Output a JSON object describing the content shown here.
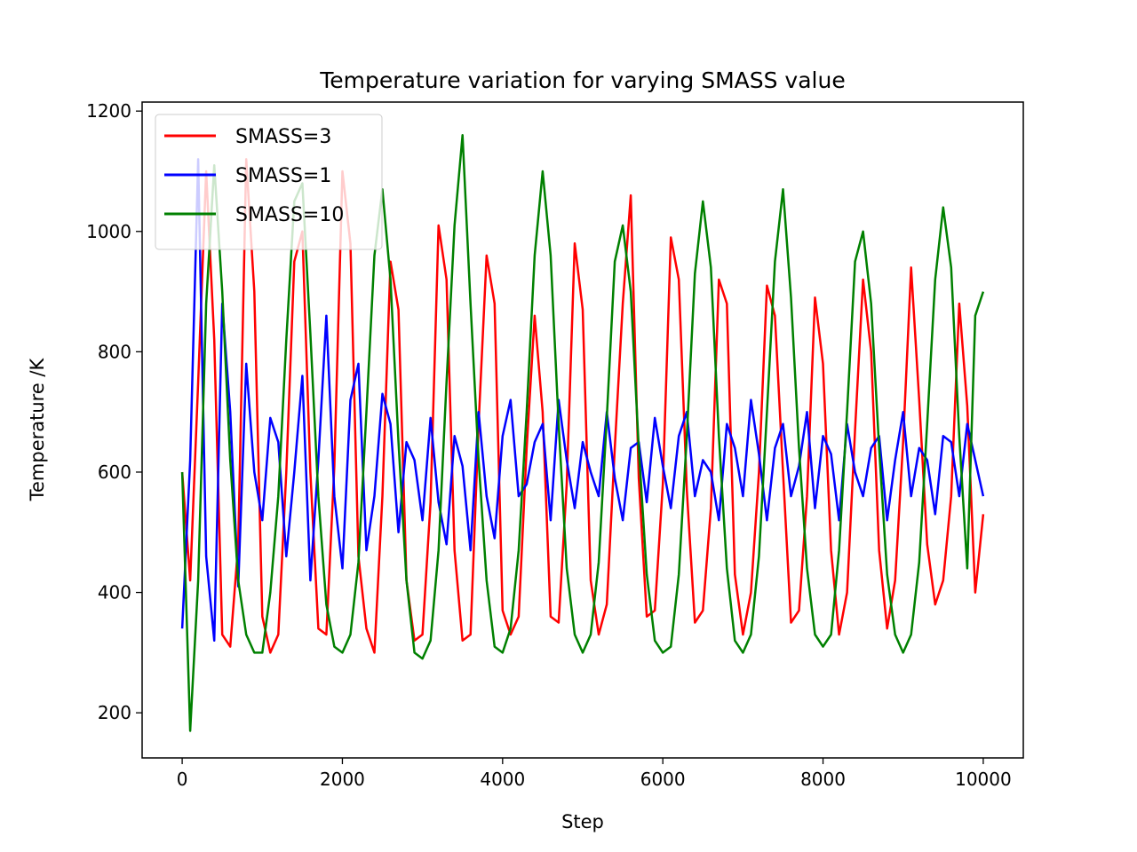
{
  "chart_data": {
    "type": "line",
    "title": "Temperature variation for varying SMASS value",
    "xlabel": "Step",
    "ylabel": "Temperature /K",
    "xlim": [
      -500,
      10500
    ],
    "ylim": [
      125,
      1215
    ],
    "xticks": [
      0,
      2000,
      4000,
      6000,
      8000,
      10000
    ],
    "yticks": [
      200,
      400,
      600,
      800,
      1000,
      1200
    ],
    "grid": false,
    "legend_position": "top-left",
    "series": [
      {
        "name": "SMASS=3",
        "color": "#ff0000",
        "x": [
          0,
          100,
          200,
          300,
          400,
          500,
          600,
          700,
          800,
          900,
          1000,
          1100,
          1200,
          1300,
          1400,
          1500,
          1600,
          1700,
          1800,
          1900,
          2000,
          2100,
          2200,
          2300,
          2400,
          2500,
          2600,
          2700,
          2800,
          2900,
          3000,
          3100,
          3200,
          3300,
          3400,
          3500,
          3600,
          3700,
          3800,
          3900,
          4000,
          4100,
          4200,
          4300,
          4400,
          4500,
          4600,
          4700,
          4800,
          4900,
          5000,
          5100,
          5200,
          5300,
          5400,
          5500,
          5600,
          5700,
          5800,
          5900,
          6000,
          6100,
          6200,
          6300,
          6400,
          6500,
          6600,
          6700,
          6800,
          6900,
          7000,
          7100,
          7200,
          7300,
          7400,
          7500,
          7600,
          7700,
          7800,
          7900,
          8000,
          8100,
          8200,
          8300,
          8400,
          8500,
          8600,
          8700,
          8800,
          8900,
          9000,
          9100,
          9200,
          9300,
          9400,
          9500,
          9600,
          9700,
          9800,
          9900,
          10000
        ],
        "values": [
          600,
          420,
          750,
          1100,
          820,
          330,
          310,
          480,
          1120,
          900,
          360,
          300,
          330,
          600,
          950,
          1000,
          600,
          340,
          330,
          610,
          1100,
          980,
          460,
          340,
          300,
          560,
          950,
          870,
          420,
          320,
          330,
          550,
          1010,
          920,
          470,
          320,
          330,
          680,
          960,
          880,
          370,
          330,
          360,
          640,
          860,
          700,
          360,
          350,
          580,
          980,
          870,
          420,
          330,
          380,
          640,
          880,
          1060,
          590,
          360,
          370,
          580,
          990,
          920,
          570,
          350,
          370,
          540,
          920,
          880,
          430,
          330,
          400,
          600,
          910,
          860,
          600,
          350,
          370,
          560,
          890,
          780,
          470,
          330,
          400,
          670,
          920,
          800,
          470,
          340,
          420,
          650,
          940,
          720,
          480,
          380,
          420,
          560,
          880,
          710,
          400,
          530
        ]
      },
      {
        "name": "SMASS=1",
        "color": "#0000ff",
        "x": [
          0,
          100,
          200,
          300,
          400,
          500,
          600,
          700,
          800,
          900,
          1000,
          1100,
          1200,
          1300,
          1400,
          1500,
          1600,
          1700,
          1800,
          1900,
          2000,
          2100,
          2200,
          2300,
          2400,
          2500,
          2600,
          2700,
          2800,
          2900,
          3000,
          3100,
          3200,
          3300,
          3400,
          3500,
          3600,
          3700,
          3800,
          3900,
          4000,
          4100,
          4200,
          4300,
          4400,
          4500,
          4600,
          4700,
          4800,
          4900,
          5000,
          5100,
          5200,
          5300,
          5400,
          5500,
          5600,
          5700,
          5800,
          5900,
          6000,
          6100,
          6200,
          6300,
          6400,
          6500,
          6600,
          6700,
          6800,
          6900,
          7000,
          7100,
          7200,
          7300,
          7400,
          7500,
          7600,
          7700,
          7800,
          7900,
          8000,
          8100,
          8200,
          8300,
          8400,
          8500,
          8600,
          8700,
          8800,
          8900,
          9000,
          9100,
          9200,
          9300,
          9400,
          9500,
          9600,
          9700,
          9800,
          9900,
          10000
        ],
        "values": [
          340,
          620,
          1120,
          460,
          320,
          880,
          700,
          410,
          780,
          600,
          520,
          690,
          650,
          460,
          600,
          760,
          420,
          620,
          860,
          560,
          440,
          720,
          780,
          470,
          560,
          730,
          680,
          500,
          650,
          620,
          520,
          690,
          550,
          480,
          660,
          610,
          470,
          700,
          560,
          490,
          660,
          720,
          560,
          580,
          650,
          680,
          520,
          720,
          620,
          540,
          650,
          600,
          560,
          700,
          590,
          520,
          640,
          650,
          550,
          690,
          610,
          540,
          660,
          700,
          560,
          620,
          600,
          520,
          680,
          640,
          560,
          720,
          630,
          520,
          640,
          680,
          560,
          610,
          700,
          540,
          660,
          630,
          520,
          680,
          600,
          560,
          640,
          660,
          520,
          620,
          700,
          560,
          640,
          620,
          530,
          660,
          650,
          560,
          680,
          620,
          560
        ]
      },
      {
        "name": "SMASS=10",
        "color": "#008000",
        "x": [
          0,
          100,
          200,
          300,
          400,
          500,
          600,
          700,
          800,
          900,
          1000,
          1100,
          1200,
          1300,
          1400,
          1500,
          1600,
          1700,
          1800,
          1900,
          2000,
          2100,
          2200,
          2300,
          2400,
          2500,
          2600,
          2700,
          2800,
          2900,
          3000,
          3100,
          3200,
          3300,
          3400,
          3500,
          3600,
          3700,
          3800,
          3900,
          4000,
          4100,
          4200,
          4300,
          4400,
          4500,
          4600,
          4700,
          4800,
          4900,
          5000,
          5100,
          5200,
          5300,
          5400,
          5500,
          5600,
          5700,
          5800,
          5900,
          6000,
          6100,
          6200,
          6300,
          6400,
          6500,
          6600,
          6700,
          6800,
          6900,
          7000,
          7100,
          7200,
          7300,
          7400,
          7500,
          7600,
          7700,
          7800,
          7900,
          8000,
          8100,
          8200,
          8300,
          8400,
          8500,
          8600,
          8700,
          8800,
          8900,
          9000,
          9100,
          9200,
          9300,
          9400,
          9500,
          9600,
          9700,
          9800,
          9900,
          10000
        ],
        "values": [
          600,
          170,
          420,
          880,
          1110,
          900,
          620,
          420,
          330,
          300,
          300,
          400,
          560,
          820,
          1050,
          1080,
          830,
          560,
          380,
          310,
          300,
          330,
          450,
          700,
          960,
          1070,
          920,
          650,
          420,
          300,
          290,
          320,
          470,
          750,
          1010,
          1160,
          880,
          620,
          420,
          310,
          300,
          340,
          470,
          700,
          960,
          1100,
          960,
          680,
          440,
          330,
          300,
          330,
          450,
          690,
          950,
          1010,
          900,
          640,
          430,
          320,
          300,
          310,
          430,
          660,
          930,
          1050,
          940,
          660,
          440,
          320,
          300,
          330,
          460,
          700,
          950,
          1070,
          890,
          640,
          440,
          330,
          310,
          330,
          470,
          700,
          950,
          1000,
          880,
          640,
          430,
          330,
          300,
          330,
          450,
          680,
          920,
          1040,
          940,
          660,
          440,
          860,
          900
        ]
      }
    ]
  }
}
